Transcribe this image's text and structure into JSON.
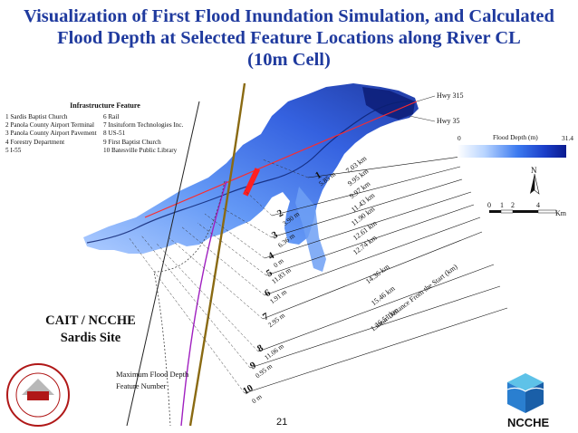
{
  "title": {
    "line1": "Visualization of First Flood Inundation Simulation, and Calculated",
    "line2": "Flood Depth at Selected Feature Locations along River CL",
    "line3": "(10m Cell)"
  },
  "infrastructure_legend": {
    "title": "Infrastructure Feature",
    "items": [
      "1  Sardis Baptist Church",
      "6  Rail",
      "2  Panola County Airport Terminal",
      "7  Insituform Technologies Inc.",
      "3  Panola County Airport Pavement",
      "8  US-51",
      "4  Forestry Department",
      "9  First Baptist Church",
      "5  I-55",
      "10  Batesville Public Library"
    ]
  },
  "highways": {
    "hwy315": "Hwy 315",
    "hwy35": "Hwy 35"
  },
  "colorbar": {
    "title": "Flood Depth (m)",
    "min": "0",
    "max": "31.4"
  },
  "scale": {
    "ticks": [
      "0",
      "1",
      "2",
      "4"
    ],
    "unit": "Km"
  },
  "north": "N",
  "features": [
    {
      "num": "1",
      "depth": "5.85 m",
      "dist": "7.03 km"
    },
    {
      "num": "2",
      "depth": "3.90 m",
      "dist": "9.95 km"
    },
    {
      "num": "3",
      "depth": "6.36 m",
      "dist": "9.97 km"
    },
    {
      "num": "4",
      "depth": "0 m",
      "dist": "11.43 km"
    },
    {
      "num": "5",
      "depth": "11.83 m",
      "dist": "11.90 km"
    },
    {
      "num": "6",
      "depth": "1.91 m",
      "dist": "12.61 km"
    },
    {
      "num": "7",
      "depth": "2.95 m",
      "dist": "12.74 km"
    },
    {
      "num": "8",
      "depth": "11.06 m",
      "dist": "14.36 km"
    },
    {
      "num": "9",
      "depth": "0.95 m",
      "dist": "15.46 km"
    },
    {
      "num": "10",
      "depth": "0 m",
      "dist": "16.51 km"
    }
  ],
  "linear_distance_label": "Linear Distance From the Start (km)",
  "cait": {
    "line1": "CAIT / NCCHE",
    "line2": "Sardis Site"
  },
  "key": {
    "max_depth": "Maximum Flood Depth",
    "feature_number": "Feature Number"
  },
  "logo_text": {
    "seal_ring": "CENTER FOR ADVANCED INFRASTRUCTURE TECHNOLOGY",
    "seal_center": "CAIT",
    "seal_bottom": "The University of Mississippi"
  },
  "page_number": "21",
  "ncche": "NCCHE"
}
